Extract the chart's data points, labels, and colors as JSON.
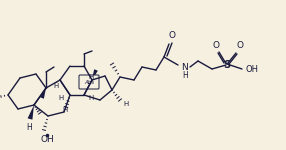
{
  "bg_color": "#f5f0e0",
  "line_color": "#1a1a3e",
  "line_width": 1.0,
  "figsize": [
    2.86,
    1.5
  ],
  "dpi": 100,
  "xlim": [
    0,
    286
  ],
  "ylim": [
    0,
    150
  ]
}
